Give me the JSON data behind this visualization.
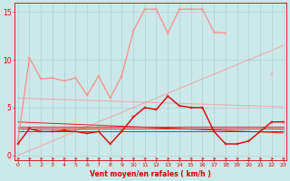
{
  "x": [
    0,
    1,
    2,
    3,
    4,
    5,
    6,
    7,
    8,
    9,
    10,
    11,
    12,
    13,
    14,
    15,
    16,
    17,
    18,
    19,
    20,
    21,
    22,
    23
  ],
  "salmon_diag_up": [
    0.0,
    0.5,
    1.0,
    1.5,
    2.0,
    2.5,
    3.0,
    3.5,
    4.0,
    4.5,
    5.0,
    5.5,
    6.0,
    6.5,
    7.0,
    7.5,
    8.0,
    8.5,
    9.0,
    9.5,
    10.0,
    10.5,
    11.0,
    11.5
  ],
  "salmon_diag_down": [
    6.0,
    5.96,
    5.92,
    5.88,
    5.84,
    5.8,
    5.76,
    5.72,
    5.68,
    5.64,
    5.6,
    5.56,
    5.52,
    5.48,
    5.44,
    5.4,
    5.36,
    5.32,
    5.28,
    5.24,
    5.2,
    5.16,
    5.12,
    5.08
  ],
  "salmon_zigzag": [
    1.5,
    10.2,
    8.0,
    8.1,
    7.8,
    8.1,
    6.3,
    8.3,
    6.0,
    8.3,
    13.0,
    15.3,
    15.3,
    12.8,
    15.3,
    15.3,
    15.3,
    12.9,
    12.8,
    null,
    null,
    null,
    8.5,
    null
  ],
  "red_zigzag": [
    1.2,
    2.8,
    2.5,
    2.5,
    2.6,
    2.5,
    2.3,
    2.5,
    1.2,
    2.5,
    4.0,
    5.0,
    4.8,
    6.2,
    5.2,
    5.0,
    5.0,
    2.5,
    1.2,
    1.2,
    1.5,
    2.5,
    3.5,
    3.5
  ],
  "red_line1": [
    3.5,
    3.45,
    3.4,
    3.35,
    3.3,
    3.25,
    3.2,
    3.15,
    3.1,
    3.05,
    3.0,
    2.95,
    2.9,
    2.85,
    2.8,
    2.75,
    2.7,
    2.65,
    2.6,
    2.55,
    2.5,
    2.45,
    2.4,
    2.35
  ],
  "red_line2": [
    3.0,
    3.0,
    3.0,
    3.0,
    3.0,
    3.0,
    3.0,
    3.0,
    3.0,
    3.0,
    3.0,
    3.0,
    3.0,
    3.0,
    3.0,
    3.0,
    3.0,
    3.0,
    3.0,
    3.0,
    3.0,
    3.0,
    3.0,
    3.0
  ],
  "red_line3": [
    2.8,
    2.8,
    2.8,
    2.8,
    2.8,
    2.8,
    2.8,
    2.8,
    2.8,
    2.8,
    2.8,
    2.8,
    2.8,
    2.8,
    2.8,
    2.8,
    2.8,
    2.8,
    2.8,
    2.8,
    2.8,
    2.8,
    2.8,
    2.8
  ],
  "red_line4": [
    2.5,
    2.5,
    2.5,
    2.5,
    2.5,
    2.5,
    2.5,
    2.5,
    2.5,
    2.5,
    2.5,
    2.5,
    2.5,
    2.5,
    2.5,
    2.5,
    2.5,
    2.5,
    2.5,
    2.5,
    2.5,
    2.5,
    2.5,
    2.5
  ],
  "background_color": "#cce8e8",
  "grid_color": "#aacccc",
  "salmon_color": "#ff8888",
  "red_color": "#dd0000",
  "xlabel": "Vent moyen/en rafales ( km/h )",
  "yticks": [
    0,
    5,
    10,
    15
  ],
  "xticks": [
    0,
    1,
    2,
    3,
    4,
    5,
    6,
    7,
    8,
    9,
    10,
    11,
    12,
    13,
    14,
    15,
    16,
    17,
    18,
    19,
    20,
    21,
    22,
    23
  ],
  "ylim": [
    -0.5,
    16
  ],
  "xlim": [
    -0.3,
    23.3
  ]
}
